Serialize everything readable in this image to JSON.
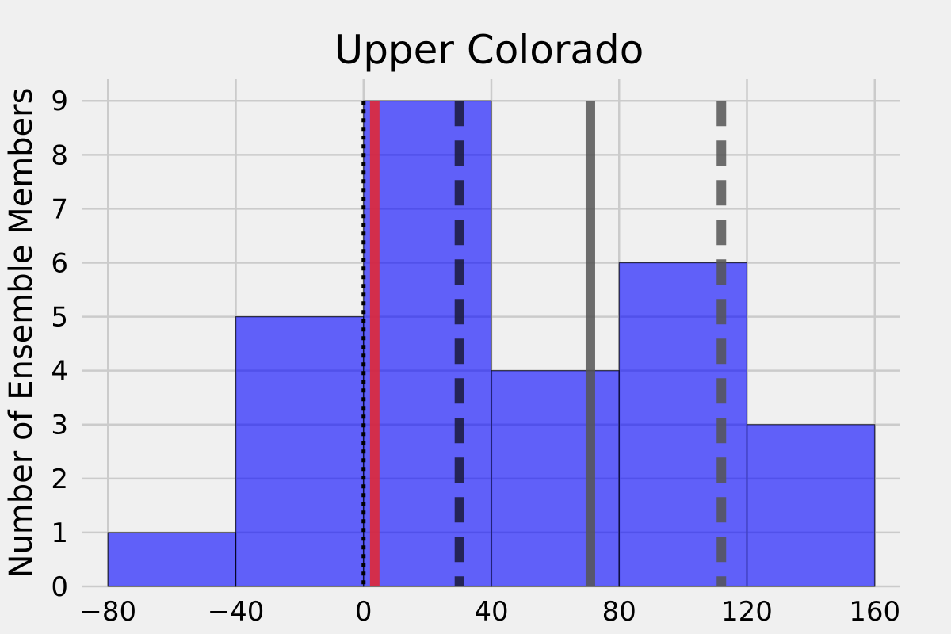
{
  "chart_data": {
    "type": "bar",
    "title": "Upper Colorado",
    "xlabel": "",
    "ylabel": "Number of Ensemble Members",
    "bin_edges": [
      -80,
      -40,
      0,
      40,
      80,
      120,
      160
    ],
    "counts": [
      1,
      5,
      9,
      4,
      6,
      3
    ],
    "xlim": [
      -88,
      168
    ],
    "ylim": [
      0,
      9.4
    ],
    "x_ticks": [
      -80,
      -40,
      0,
      40,
      80,
      120,
      160
    ],
    "x_tick_labels": [
      "−80",
      "−40",
      "0",
      "40",
      "80",
      "120",
      "160"
    ],
    "y_ticks": [
      0,
      1,
      2,
      3,
      4,
      5,
      6,
      7,
      8,
      9
    ],
    "y_tick_labels": [
      "0",
      "1",
      "2",
      "3",
      "4",
      "5",
      "6",
      "7",
      "8",
      "9"
    ],
    "grid": true,
    "bar_color": "#0000ff",
    "bar_alpha": 0.6,
    "vertical_lines": [
      {
        "x": 0,
        "style": "dotted",
        "color": "#000000"
      },
      {
        "x": 3.5,
        "style": "solid",
        "color": "#e8262d"
      },
      {
        "x": 30,
        "style": "dashed",
        "color": "#1a1a3a"
      },
      {
        "x": 71,
        "style": "solid",
        "color": "#555555"
      },
      {
        "x": 112,
        "style": "dashed",
        "color": "#555555"
      }
    ]
  }
}
